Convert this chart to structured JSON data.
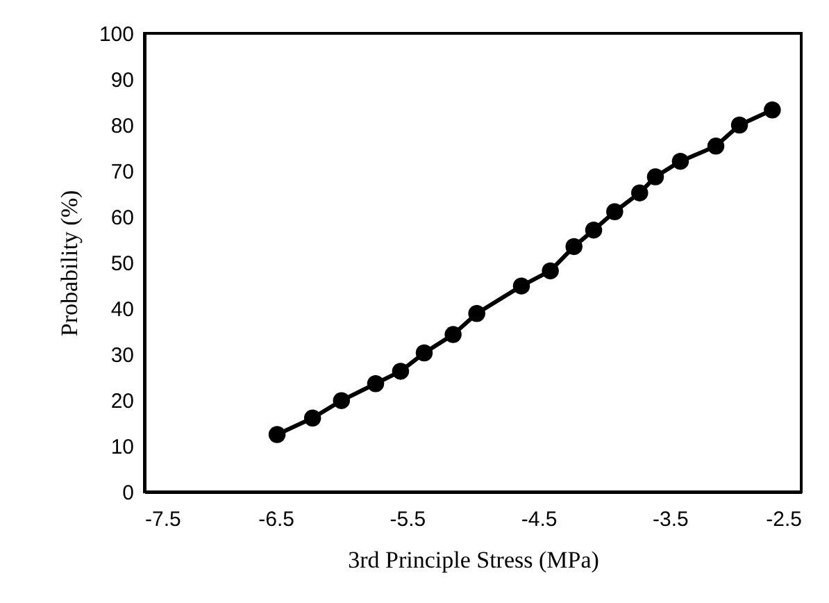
{
  "chart_data": {
    "type": "line",
    "xlabel": "3rd Principle Stress (MPa)",
    "ylabel": "Probability (%)",
    "x": [
      -6.49,
      -6.22,
      -6.0,
      -5.74,
      -5.55,
      -5.37,
      -5.15,
      -4.97,
      -4.63,
      -4.41,
      -4.23,
      -4.08,
      -3.92,
      -3.73,
      -3.61,
      -3.42,
      -3.15,
      -2.97,
      -2.72
    ],
    "series": [
      {
        "color": "#000000",
        "values": [
          12.5,
          16.1,
          19.9,
          23.6,
          26.3,
          30.3,
          34.3,
          38.9,
          44.9,
          48.2,
          53.5,
          57.1,
          61.1,
          65.2,
          68.7,
          72.1,
          75.4,
          80.0,
          83.3
        ]
      }
    ],
    "xlim": [
      -7.5,
      -2.5
    ],
    "xticks": [
      -7.5,
      -6.5,
      -5.5,
      -4.5,
      -3.5,
      -2.5
    ],
    "ylim": [
      0,
      100
    ],
    "yticks": [
      0,
      10,
      20,
      30,
      40,
      50,
      60,
      70,
      80,
      90,
      100
    ],
    "grid": false,
    "marker": "circle",
    "line_style": "solid"
  }
}
